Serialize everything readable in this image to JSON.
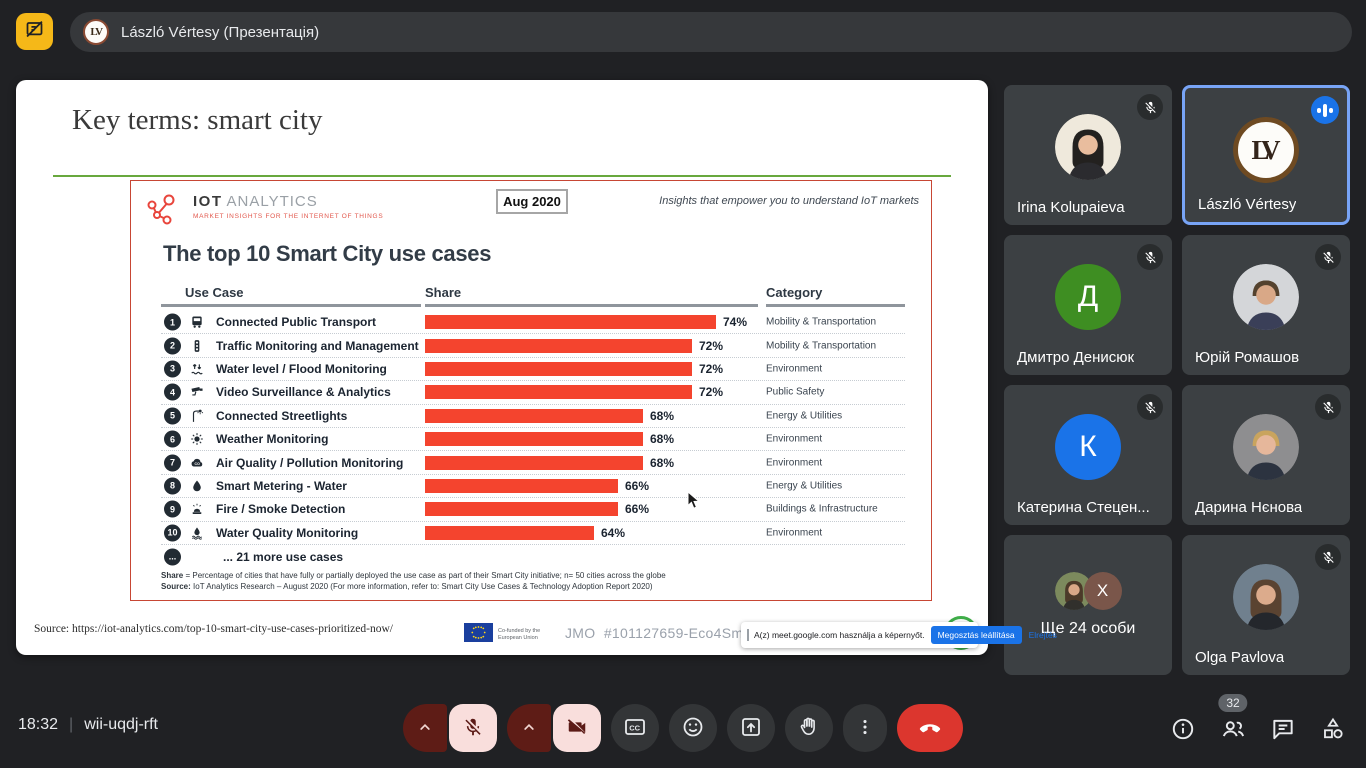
{
  "top_bar": {
    "presenter_label": "László Vértesy (Презентація)",
    "avatar_monogram": "LV"
  },
  "slide": {
    "title": "Key terms: smart city",
    "source_line": "Source: https://iot-analytics.com/top-10-smart-city-use-cases-prioritized-now/",
    "eu_label": "Co-funded by the European Union",
    "project_ref": "JMO  #101127659-Eco4Smart"
  },
  "chart_data": {
    "type": "bar",
    "title": "The top 10 Smart City use cases",
    "brand": {
      "name_bold": "IOT",
      "name_light": "ANALYTICS",
      "subtitle": "MARKET INSIGHTS FOR THE INTERNET OF THINGS"
    },
    "date_badge": "Aug 2020",
    "tagline": "Insights that empower you to understand IoT markets",
    "columns": [
      "Use Case",
      "Share",
      "Category"
    ],
    "bar_color": "#f4442e",
    "xlim_hint": [
      50,
      74
    ],
    "rows": [
      {
        "rank": "1",
        "icon": "bus-icon",
        "use_case": "Connected Public Transport",
        "share_pct": 74,
        "category": "Mobility & Transportation"
      },
      {
        "rank": "2",
        "icon": "traffic-light-icon",
        "use_case": "Traffic Monitoring and Management",
        "share_pct": 72,
        "category": "Mobility & Transportation"
      },
      {
        "rank": "3",
        "icon": "flood-icon",
        "use_case": "Water level / Flood Monitoring",
        "share_pct": 72,
        "category": "Environment"
      },
      {
        "rank": "4",
        "icon": "cctv-icon",
        "use_case": "Video Surveillance & Analytics",
        "share_pct": 72,
        "category": "Public Safety"
      },
      {
        "rank": "5",
        "icon": "streetlight-icon",
        "use_case": "Connected Streetlights",
        "share_pct": 68,
        "category": "Energy & Utilities"
      },
      {
        "rank": "6",
        "icon": "weather-icon",
        "use_case": "Weather Monitoring",
        "share_pct": 68,
        "category": "Environment"
      },
      {
        "rank": "7",
        "icon": "air-quality-icon",
        "use_case": "Air Quality / Pollution Monitoring",
        "share_pct": 68,
        "category": "Environment"
      },
      {
        "rank": "8",
        "icon": "water-drop-icon",
        "use_case": "Smart Metering - Water",
        "share_pct": 66,
        "category": "Energy & Utilities"
      },
      {
        "rank": "9",
        "icon": "fire-alarm-icon",
        "use_case": "Fire / Smoke Detection",
        "share_pct": 66,
        "category": "Buildings & Infrastructure"
      },
      {
        "rank": "10",
        "icon": "water-quality-icon",
        "use_case": "Water Quality Monitoring",
        "share_pct": 64,
        "category": "Environment"
      }
    ],
    "more_label": "... 21 more use cases",
    "footnotes": [
      {
        "prefix": "Share",
        "text": " = Percentage of cities that have fully or partially deployed the use case as part of their Smart City initiative; n= 50 cities across the globe"
      },
      {
        "prefix": "Source:",
        "text": " IoT Analytics Research – August 2020 (For more information, refer to: Smart City Use Cases & Technology Adoption Report 2020)"
      }
    ]
  },
  "share_notification": {
    "message": "A(z) meet.google.com használja a képernyőt.",
    "stop_button": "Megosztás leállítása",
    "hide_button": "Elrejtés"
  },
  "participants": [
    {
      "name": "Irina Kolupaieva",
      "muted": true,
      "speaking": false,
      "highlighted": false,
      "avatar": {
        "kind": "photo",
        "style": "long",
        "bg": "#efe9dc",
        "hair": "#23211f",
        "skin": "#e9bd9e",
        "shirt": "#2b2b2f"
      }
    },
    {
      "name": "László Vértesy",
      "muted": false,
      "speaking": true,
      "highlighted": true,
      "avatar": {
        "kind": "monogram",
        "text": "LV"
      }
    },
    {
      "name": "Дмитро Денисюк",
      "muted": true,
      "speaking": false,
      "highlighted": false,
      "avatar": {
        "kind": "initial",
        "text": "Д",
        "bg": "#3e8e22"
      }
    },
    {
      "name": "Юрій Ромашов",
      "muted": true,
      "speaking": false,
      "highlighted": false,
      "avatar": {
        "kind": "photo",
        "style": "short",
        "bg": "#d4d6d9",
        "hair": "#54422e",
        "skin": "#d9a887",
        "shirt": "#3a3f58"
      }
    },
    {
      "name": "Катерина Стецен...",
      "muted": true,
      "speaking": false,
      "highlighted": false,
      "avatar": {
        "kind": "initial",
        "text": "К",
        "bg": "#1a73e8"
      }
    },
    {
      "name": "Дарина Нєнова",
      "muted": true,
      "speaking": false,
      "highlighted": false,
      "avatar": {
        "kind": "photo",
        "style": "short",
        "bg": "#8e8e90",
        "hair": "#c9a45e",
        "skin": "#e6b79b",
        "shirt": "#2c3340"
      }
    },
    {
      "name": "Ще 24 особи",
      "muted": false,
      "speaking": false,
      "highlighted": false,
      "avatar": {
        "kind": "overflow",
        "badge_text": "X",
        "badge_bg": "#7a564a",
        "photo": {
          "style": "long",
          "bg": "#7c8a5d",
          "hair": "#4c3a29",
          "skin": "#d9a887",
          "shirt": "#31302c"
        }
      }
    },
    {
      "name": "Olga Pavlova",
      "muted": true,
      "speaking": false,
      "highlighted": false,
      "avatar": {
        "kind": "photo",
        "style": "long",
        "bg": "#70808e",
        "hair": "#5a4331",
        "skin": "#dcab8c",
        "shirt": "#24272c"
      }
    }
  ],
  "bottom_bar": {
    "time": "18:32",
    "meeting_code": "wii-uqdj-rft",
    "participants_count": "32"
  }
}
